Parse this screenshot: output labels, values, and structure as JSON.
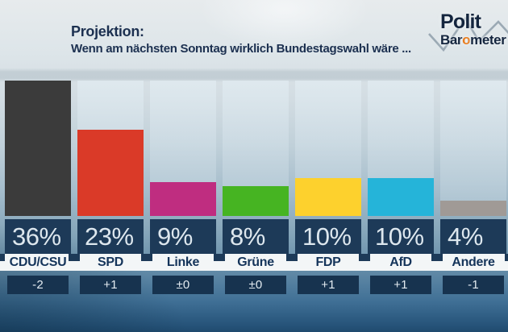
{
  "header": {
    "title": "Projektion:",
    "subtitle": "Wenn am nächsten Sonntag wirklich Bundestagswahl wäre ..."
  },
  "logo": {
    "line1": "Polit",
    "line2_pre": "Bar",
    "line2_o": "o",
    "line2_post": "meter"
  },
  "chart_data": {
    "type": "bar",
    "title": "Projektion: Wenn am nächsten Sonntag wirklich Bundestagswahl wäre ...",
    "categories": [
      "CDU/CSU",
      "SPD",
      "Linke",
      "Grüne",
      "FDP",
      "AfD",
      "Andere"
    ],
    "values": [
      36,
      23,
      9,
      8,
      10,
      10,
      4
    ],
    "value_labels": [
      "36%",
      "23%",
      "9%",
      "8%",
      "10%",
      "10%",
      "4%"
    ],
    "changes": [
      "-2",
      "+1",
      "±0",
      "±0",
      "+1",
      "+1",
      "-1"
    ],
    "colors": [
      "#3b3b3b",
      "#da3a28",
      "#bf2d80",
      "#46b422",
      "#fdd12d",
      "#25b4d9",
      "#a09a96"
    ],
    "unit": "%",
    "xlabel": "",
    "ylabel": "",
    "ylim": [
      0,
      36
    ],
    "grid": false,
    "legend": false
  },
  "theme_colors": {
    "value_band_navy": "#1d3a58",
    "change_band_navy": "#17334f",
    "label_band_white": "#f3f6f7",
    "value_text": "#dde7ee",
    "title_navy": "#1c3050",
    "logo_orange": "#e87c1e",
    "zigzag_gray": "#8e9daa"
  }
}
